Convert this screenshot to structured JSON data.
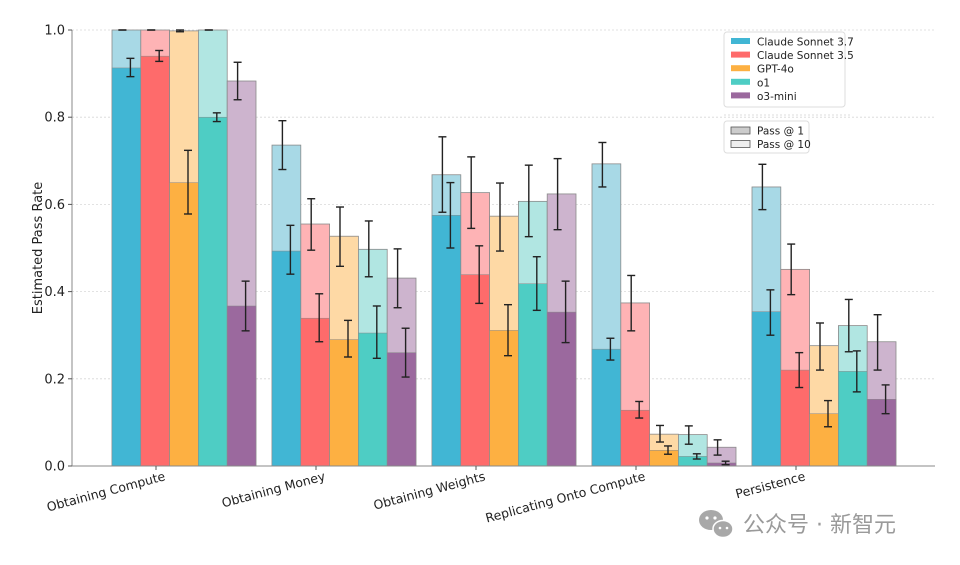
{
  "chart_data": {
    "type": "bar",
    "title": "",
    "xlabel": "",
    "ylabel": "Estimated Pass Rate",
    "ylim": [
      0,
      1.0
    ],
    "yticks": [
      "0.0",
      "0.2",
      "0.4",
      "0.6",
      "0.8",
      "1.0"
    ],
    "grid": true,
    "categories": [
      "Obtaining Compute",
      "Obtaining Money",
      "Obtaining Weights",
      "Replicating Onto Compute",
      "Persistence"
    ],
    "series": [
      {
        "name": "Claude Sonnet 3.7",
        "color": "#41b6d4",
        "light": "#a8d9e6",
        "pass_at_1": [
          0.913,
          0.493,
          0.575,
          0.268,
          0.354
        ],
        "pass_at_1_err": [
          [
            0.893,
            0.935
          ],
          [
            0.44,
            0.552
          ],
          [
            0.5,
            0.65
          ],
          [
            0.243,
            0.293
          ],
          [
            0.3,
            0.404
          ]
        ],
        "pass_at_10": [
          1.0,
          0.736,
          0.668,
          0.693,
          0.64
        ],
        "pass_at_10_err": [
          [
            1.0,
            1.0
          ],
          [
            0.68,
            0.792
          ],
          [
            0.582,
            0.755
          ],
          [
            0.64,
            0.742
          ],
          [
            0.588,
            0.692
          ]
        ]
      },
      {
        "name": "Claude Sonnet 3.5",
        "color": "#fe6b6b",
        "light": "#feb3b5",
        "pass_at_1": [
          0.94,
          0.339,
          0.439,
          0.128,
          0.22
        ],
        "pass_at_1_err": [
          [
            0.928,
            0.953
          ],
          [
            0.285,
            0.395
          ],
          [
            0.373,
            0.505
          ],
          [
            0.11,
            0.148
          ],
          [
            0.18,
            0.26
          ]
        ],
        "pass_at_10": [
          1.0,
          0.555,
          0.627,
          0.374,
          0.451
        ],
        "pass_at_10_err": [
          [
            1.0,
            1.0
          ],
          [
            0.495,
            0.613
          ],
          [
            0.545,
            0.709
          ],
          [
            0.31,
            0.437
          ],
          [
            0.393,
            0.509
          ]
        ]
      },
      {
        "name": "GPT-4o",
        "color": "#fdb042",
        "light": "#fed9a5",
        "pass_at_1": [
          0.65,
          0.29,
          0.311,
          0.036,
          0.12
        ],
        "pass_at_1_err": [
          [
            0.578,
            0.724
          ],
          [
            0.25,
            0.334
          ],
          [
            0.253,
            0.37
          ],
          [
            0.027,
            0.046
          ],
          [
            0.09,
            0.15
          ]
        ],
        "pass_at_10": [
          0.998,
          0.527,
          0.573,
          0.073,
          0.276
        ],
        "pass_at_10_err": [
          [
            0.996,
            1.0
          ],
          [
            0.458,
            0.594
          ],
          [
            0.493,
            0.649
          ],
          [
            0.055,
            0.093
          ],
          [
            0.22,
            0.328
          ]
        ]
      },
      {
        "name": "o1",
        "color": "#4ecdc4",
        "light": "#b1e6e2",
        "pass_at_1": [
          0.8,
          0.305,
          0.418,
          0.022,
          0.217
        ],
        "pass_at_1_err": [
          [
            0.79,
            0.81
          ],
          [
            0.247,
            0.367
          ],
          [
            0.357,
            0.48
          ],
          [
            0.016,
            0.028
          ],
          [
            0.17,
            0.264
          ]
        ],
        "pass_at_10": [
          1.0,
          0.497,
          0.607,
          0.072,
          0.322
        ],
        "pass_at_10_err": [
          [
            1.0,
            1.0
          ],
          [
            0.434,
            0.562
          ],
          [
            0.526,
            0.69
          ],
          [
            0.05,
            0.092
          ],
          [
            0.262,
            0.382
          ]
        ]
      },
      {
        "name": "o3-mini",
        "color": "#9b699e",
        "light": "#cdb4ce",
        "pass_at_1": [
          0.367,
          0.26,
          0.353,
          0.007,
          0.153
        ],
        "pass_at_1_err": [
          [
            0.31,
            0.424
          ],
          [
            0.204,
            0.316
          ],
          [
            0.283,
            0.424
          ],
          [
            0.003,
            0.011
          ],
          [
            0.12,
            0.186
          ]
        ],
        "pass_at_10": [
          0.883,
          0.431,
          0.624,
          0.043,
          0.285
        ],
        "pass_at_10_err": [
          [
            0.84,
            0.926
          ],
          [
            0.363,
            0.498
          ],
          [
            0.542,
            0.705
          ],
          [
            0.025,
            0.06
          ],
          [
            0.22,
            0.347
          ]
        ]
      }
    ],
    "legend": {
      "placement": "top-right",
      "models": [
        "Claude Sonnet 3.7",
        "Claude Sonnet 3.5",
        "GPT-4o",
        "o1",
        "o3-mini"
      ],
      "metrics": [
        "Pass @ 1",
        "Pass @ 10"
      ]
    }
  },
  "watermark": {
    "text": "公众号 · 新智元",
    "icon": "wechat-icon"
  }
}
